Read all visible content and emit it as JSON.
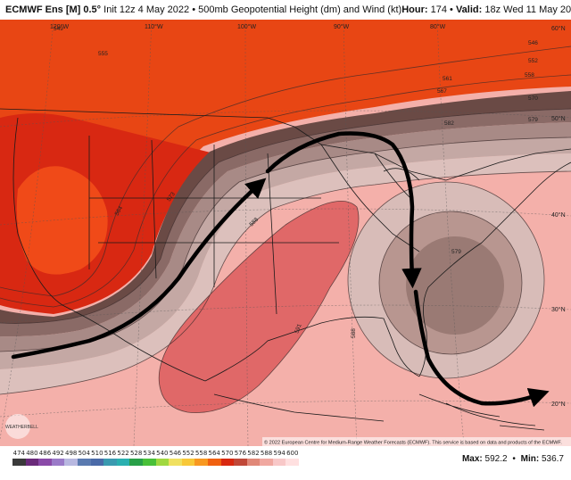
{
  "header": {
    "model": "ECMWF Ens [M] 0.5°",
    "init": "Init 12z 4 May 2022",
    "bullet": "•",
    "product": "500mb Geopotential Height (dm) and Wind (kt)",
    "hour_label": "Hour:",
    "hour": "174",
    "valid_label": "Valid:",
    "valid": "18z Wed 11 May 2022"
  },
  "map": {
    "longitude_labels": [
      "120°W",
      "110°W",
      "100°W",
      "90°W",
      "80°W"
    ],
    "latitude_labels": [
      "60°N",
      "50°N",
      "40°N",
      "30°N",
      "20°N"
    ],
    "contour_labels": [
      "546",
      "552",
      "558",
      "561",
      "567",
      "570",
      "579",
      "582",
      "564",
      "573",
      "588",
      "591",
      "588",
      "579",
      "549",
      "555"
    ],
    "copyright": "© 2022 European Centre for Medium-Range Weather Forecasts (ECMWF). This service is based on data and products of the ECMWF.",
    "logo_text": "WEATHERBELL",
    "arrows": 2
  },
  "colorbar": {
    "values": [
      "474",
      "480",
      "486",
      "492",
      "498",
      "504",
      "510",
      "516",
      "522",
      "528",
      "534",
      "540",
      "546",
      "552",
      "558",
      "564",
      "570",
      "576",
      "582",
      "588",
      "594",
      "600"
    ],
    "colors": [
      "#3a3a3a",
      "#6a2a7a",
      "#8a4aa8",
      "#9a7ac8",
      "#b8b8e0",
      "#5a7ab0",
      "#4a6aa8",
      "#3a9ab0",
      "#2ab0b0",
      "#28a048",
      "#48c038",
      "#a0d840",
      "#f0e060",
      "#f8c838",
      "#f89820",
      "#f06010",
      "#d82810",
      "#c04838",
      "#e08878",
      "#f0a8a0",
      "#f8c8c8",
      "#ffe0e0"
    ]
  },
  "stats": {
    "max_label": "Max:",
    "max": "592.2",
    "min_label": "Min:",
    "min": "536.7",
    "sep": "•"
  }
}
